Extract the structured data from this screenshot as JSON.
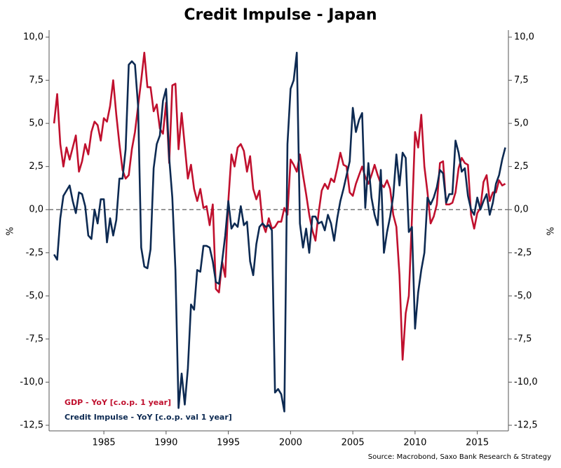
{
  "chart_data": {
    "type": "line",
    "title": "Credit Impulse - Japan",
    "y_label": "%",
    "y2_label": "%",
    "source": "Source: Macrobond, Saxo Bank Research & Strategy",
    "legend": "lower left",
    "zero_line": true,
    "xlim": [
      1980.6,
      2017.5
    ],
    "xticks": [
      1985,
      1990,
      1995,
      2000,
      2005,
      2010,
      2015
    ],
    "ylim": [
      -12.5,
      10
    ],
    "y2lim": [
      -12.5,
      10
    ],
    "yticks": [
      {
        "value": -12.5,
        "label": "-12,5"
      },
      {
        "value": -10,
        "label": "-10,0"
      },
      {
        "value": -7.5,
        "label": "-7,5"
      },
      {
        "value": -5,
        "label": "-5,0"
      },
      {
        "value": -2.5,
        "label": "-2,5"
      },
      {
        "value": 0,
        "label": "0,0"
      },
      {
        "value": 2.5,
        "label": "2,5"
      },
      {
        "value": 5,
        "label": "5,0"
      },
      {
        "value": 7.5,
        "label": "7,5"
      },
      {
        "value": 10,
        "label": "10,0"
      }
    ],
    "y2ticks": [
      {
        "value": -12.5,
        "label": "-12,5"
      },
      {
        "value": -10,
        "label": "-10,0"
      },
      {
        "value": -7.5,
        "label": "-7,5"
      },
      {
        "value": -5,
        "label": "-5,0"
      },
      {
        "value": -2.5,
        "label": "-2,5"
      },
      {
        "value": 0,
        "label": "0,0"
      },
      {
        "value": 2.5,
        "label": "2,5"
      },
      {
        "value": 5,
        "label": "5,0"
      },
      {
        "value": 7.5,
        "label": "7,5"
      },
      {
        "value": 10,
        "label": "10,0"
      }
    ],
    "x": [
      1981,
      1981.25,
      1981.5,
      1981.75,
      1982,
      1982.25,
      1982.5,
      1982.75,
      1983,
      1983.25,
      1983.5,
      1983.75,
      1984,
      1984.25,
      1984.5,
      1984.75,
      1985,
      1985.25,
      1985.5,
      1985.75,
      1986,
      1986.25,
      1986.5,
      1986.75,
      1987,
      1987.25,
      1987.5,
      1987.75,
      1988,
      1988.25,
      1988.5,
      1988.75,
      1989,
      1989.25,
      1989.5,
      1989.75,
      1990,
      1990.25,
      1990.5,
      1990.75,
      1991,
      1991.25,
      1991.5,
      1991.75,
      1992,
      1992.25,
      1992.5,
      1992.75,
      1993,
      1993.25,
      1993.5,
      1993.75,
      1994,
      1994.25,
      1994.5,
      1994.75,
      1995,
      1995.25,
      1995.5,
      1995.75,
      1996,
      1996.25,
      1996.5,
      1996.75,
      1997,
      1997.25,
      1997.5,
      1997.75,
      1998,
      1998.25,
      1998.5,
      1998.75,
      1999,
      1999.25,
      1999.5,
      1999.75,
      2000,
      2000.25,
      2000.5,
      2000.75,
      2001,
      2001.25,
      2001.5,
      2001.75,
      2002,
      2002.25,
      2002.5,
      2002.75,
      2003,
      2003.25,
      2003.5,
      2003.75,
      2004,
      2004.25,
      2004.5,
      2004.75,
      2005,
      2005.25,
      2005.5,
      2005.75,
      2006,
      2006.25,
      2006.5,
      2006.75,
      2007,
      2007.25,
      2007.5,
      2007.75,
      2008,
      2008.25,
      2008.5,
      2008.75,
      2009,
      2009.25,
      2009.5,
      2009.75,
      2010,
      2010.25,
      2010.5,
      2010.75,
      2011,
      2011.25,
      2011.5,
      2011.75,
      2012,
      2012.25,
      2012.5,
      2012.75,
      2013,
      2013.25,
      2013.5,
      2013.75,
      2014,
      2014.25,
      2014.5,
      2014.75,
      2015,
      2015.25,
      2015.5,
      2015.75,
      2016,
      2016.25,
      2016.5,
      2016.75,
      2017,
      2017.25
    ],
    "series": [
      {
        "name": "GDP - YoY [c.o.p. 1 year]",
        "color": "#c0102e",
        "values": [
          5.0,
          6.7,
          3.8,
          2.5,
          3.6,
          2.9,
          3.6,
          4.3,
          2.2,
          2.8,
          3.8,
          3.2,
          4.5,
          5.1,
          4.9,
          4.0,
          5.3,
          5.1,
          6.0,
          7.5,
          5.5,
          3.8,
          2.3,
          1.8,
          2.0,
          3.5,
          4.5,
          6.0,
          7.5,
          9.1,
          7.1,
          7.1,
          5.7,
          6.1,
          4.7,
          4.4,
          6.2,
          2.7,
          7.2,
          7.3,
          3.5,
          5.6,
          3.7,
          1.8,
          2.6,
          1.2,
          0.5,
          1.2,
          0.1,
          0.2,
          -0.9,
          0.3,
          -4.6,
          -4.8,
          -3.0,
          -3.9,
          0.5,
          3.2,
          2.5,
          3.6,
          3.8,
          3.4,
          2.2,
          3.1,
          1.2,
          0.6,
          1.1,
          -0.8,
          -1.3,
          -0.5,
          -1.1,
          -1.0,
          -0.7,
          -0.7,
          0.1,
          -0.3,
          2.9,
          2.6,
          2.2,
          3.2,
          2.0,
          0.9,
          -0.3,
          -1.2,
          -1.8,
          -0.2,
          1.1,
          1.5,
          1.2,
          1.8,
          1.6,
          2.4,
          3.3,
          2.6,
          2.5,
          1.0,
          0.8,
          1.5,
          2.0,
          2.5,
          1.9,
          1.5,
          2.0,
          2.6,
          2.0,
          1.5,
          1.3,
          1.7,
          1.2,
          -0.3,
          -1.0,
          -3.8,
          -8.7,
          -6.0,
          -5.0,
          -0.5,
          4.5,
          3.6,
          5.5,
          2.5,
          1.0,
          -0.8,
          -0.4,
          0.3,
          2.7,
          2.8,
          0.3,
          0.3,
          0.4,
          1.0,
          2.4,
          3.0,
          2.7,
          2.6,
          -0.3,
          -1.1,
          -0.2,
          0.1,
          1.6,
          2.0,
          0.5,
          1.0,
          1.0,
          1.7,
          1.4,
          1.5
        ]
      },
      {
        "name": "Credit Impulse - YoY [c.o.p. val 1 year]",
        "color": "#0d2a52",
        "axis": "y2",
        "values": [
          -2.6,
          -2.9,
          -0.5,
          0.8,
          1.1,
          1.4,
          0.5,
          -0.2,
          1.0,
          0.9,
          0.2,
          -1.5,
          -1.7,
          0.0,
          -0.8,
          0.6,
          0.6,
          -1.9,
          -0.5,
          -1.5,
          -0.6,
          1.8,
          1.8,
          3.5,
          8.4,
          8.6,
          8.4,
          6.0,
          -2.2,
          -3.3,
          -3.4,
          -2.3,
          2.4,
          3.8,
          4.3,
          6.3,
          7.0,
          3.0,
          0.7,
          -3.5,
          -11.5,
          -9.5,
          -11.3,
          -9.2,
          -5.5,
          -5.8,
          -3.5,
          -3.6,
          -2.1,
          -2.1,
          -2.2,
          -3.0,
          -4.2,
          -4.3,
          -3.0,
          -1.5,
          0.5,
          -1.1,
          -0.8,
          -1.0,
          0.2,
          -0.9,
          -0.7,
          -3.0,
          -3.8,
          -2.0,
          -1.0,
          -0.8,
          -1.0,
          -0.9,
          -1.2,
          -10.6,
          -10.4,
          -10.7,
          -11.7,
          3.8,
          7.0,
          7.5,
          9.1,
          -0.8,
          -2.2,
          -1.1,
          -2.5,
          -0.4,
          -0.4,
          -0.8,
          -0.7,
          -1.2,
          -0.3,
          -0.8,
          -1.8,
          -0.5,
          0.5,
          1.2,
          2.0,
          2.8,
          5.9,
          4.5,
          5.2,
          5.6,
          0.1,
          2.7,
          0.7,
          -0.3,
          -0.9,
          2.3,
          -2.5,
          -1.3,
          -0.4,
          0.8,
          3.2,
          1.4,
          3.3,
          3.0,
          -1.3,
          -1.0,
          -6.9,
          -4.8,
          -3.5,
          -2.5,
          0.7,
          0.3,
          0.7,
          1.3,
          2.3,
          2.1,
          0.4,
          0.9,
          0.9,
          4.0,
          3.3,
          2.2,
          2.4,
          0.8,
          0.0,
          -0.3,
          0.7,
          0.0,
          0.5,
          0.9,
          -0.3,
          0.4,
          1.5,
          2.0,
          2.9,
          3.6
        ]
      }
    ]
  }
}
